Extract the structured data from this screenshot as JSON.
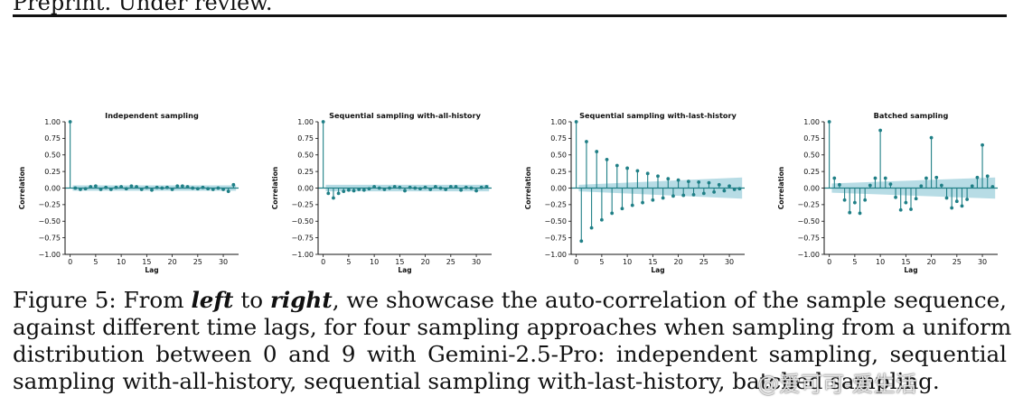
{
  "header": {
    "text": "Preprint. Under review."
  },
  "chart_data": [
    {
      "type": "stem",
      "title": "Independent sampling",
      "xlabel": "Lag",
      "ylabel": "Correlation",
      "xlim": [
        -1,
        33
      ],
      "ylim": [
        -1.0,
        1.0
      ],
      "xticks": [
        0,
        5,
        10,
        15,
        20,
        25,
        30
      ],
      "yticks": [
        -1.0,
        -0.75,
        -0.5,
        -0.25,
        0.0,
        0.25,
        0.5,
        0.75,
        1.0
      ],
      "confidence_band": [
        0.04,
        0.04
      ],
      "lags": [
        0,
        1,
        2,
        3,
        4,
        5,
        6,
        7,
        8,
        9,
        10,
        11,
        12,
        13,
        14,
        15,
        16,
        17,
        18,
        19,
        20,
        21,
        22,
        23,
        24,
        25,
        26,
        27,
        28,
        29,
        30,
        31,
        32
      ],
      "values": [
        1.0,
        0.0,
        -0.02,
        -0.01,
        0.02,
        0.03,
        -0.02,
        0.01,
        -0.02,
        0.01,
        0.02,
        -0.01,
        0.03,
        0.02,
        -0.02,
        0.01,
        -0.03,
        0.01,
        0.0,
        0.01,
        -0.02,
        0.03,
        0.03,
        0.02,
        0.0,
        -0.01,
        0.01,
        -0.01,
        -0.02,
        0.0,
        -0.02,
        -0.05,
        0.05
      ]
    },
    {
      "type": "stem",
      "title": "Sequential sampling with-all-history",
      "xlabel": "Lag",
      "ylabel": "Correlation",
      "xlim": [
        -1,
        33
      ],
      "ylim": [
        -1.0,
        1.0
      ],
      "xticks": [
        0,
        5,
        10,
        15,
        20,
        25,
        30
      ],
      "yticks": [
        -1.0,
        -0.75,
        -0.5,
        -0.25,
        0.0,
        0.25,
        0.5,
        0.75,
        1.0
      ],
      "confidence_band": [
        0.05,
        0.05
      ],
      "lags": [
        0,
        1,
        2,
        3,
        4,
        5,
        6,
        7,
        8,
        9,
        10,
        11,
        12,
        13,
        14,
        15,
        16,
        17,
        18,
        19,
        20,
        21,
        22,
        23,
        24,
        25,
        26,
        27,
        28,
        29,
        30,
        31,
        32
      ],
      "values": [
        1.0,
        -0.08,
        -0.15,
        -0.08,
        -0.05,
        -0.03,
        -0.04,
        -0.02,
        -0.03,
        -0.01,
        0.02,
        0.0,
        -0.02,
        0.0,
        0.02,
        0.01,
        -0.04,
        0.01,
        0.0,
        -0.01,
        0.01,
        -0.02,
        0.02,
        0.0,
        -0.02,
        0.02,
        0.02,
        -0.03,
        0.01,
        0.0,
        -0.04,
        0.01,
        0.02
      ]
    },
    {
      "type": "stem",
      "title": "Sequential sampling with-last-history",
      "xlabel": "Lag",
      "ylabel": "Correlation",
      "xlim": [
        -1,
        33
      ],
      "ylim": [
        -1.0,
        1.0
      ],
      "xticks": [
        0,
        5,
        10,
        15,
        20,
        25,
        30
      ],
      "yticks": [
        -1.0,
        -0.75,
        -0.5,
        -0.25,
        0.0,
        0.25,
        0.5,
        0.75,
        1.0
      ],
      "confidence_band": [
        0.05,
        0.16
      ],
      "lags": [
        0,
        1,
        2,
        3,
        4,
        5,
        6,
        7,
        8,
        9,
        10,
        11,
        12,
        13,
        14,
        15,
        16,
        17,
        18,
        19,
        20,
        21,
        22,
        23,
        24,
        25,
        26,
        27,
        28,
        29,
        30,
        31,
        32
      ],
      "values": [
        1.0,
        -0.8,
        0.7,
        -0.6,
        0.55,
        -0.48,
        0.43,
        -0.38,
        0.34,
        -0.31,
        0.3,
        -0.26,
        0.26,
        -0.22,
        0.22,
        -0.18,
        0.18,
        -0.15,
        0.14,
        -0.12,
        0.12,
        -0.11,
        0.1,
        -0.1,
        0.09,
        -0.08,
        0.08,
        -0.06,
        0.05,
        -0.04,
        0.03,
        -0.02,
        -0.01
      ]
    },
    {
      "type": "stem",
      "title": "Batched sampling",
      "xlabel": "Lag",
      "ylabel": "Correlation",
      "xlim": [
        -1,
        33
      ],
      "ylim": [
        -1.0,
        1.0
      ],
      "xticks": [
        0,
        5,
        10,
        15,
        20,
        25,
        30
      ],
      "yticks": [
        -1.0,
        -0.75,
        -0.5,
        -0.25,
        0.0,
        0.25,
        0.5,
        0.75,
        1.0
      ],
      "confidence_band": [
        0.07,
        0.16
      ],
      "lags": [
        0,
        1,
        2,
        3,
        4,
        5,
        6,
        7,
        8,
        9,
        10,
        11,
        12,
        13,
        14,
        15,
        16,
        17,
        18,
        19,
        20,
        21,
        22,
        23,
        24,
        25,
        26,
        27,
        28,
        29,
        30,
        31,
        32
      ],
      "values": [
        1.0,
        0.15,
        0.05,
        -0.18,
        -0.37,
        -0.22,
        -0.38,
        -0.18,
        0.04,
        0.15,
        0.87,
        0.15,
        0.06,
        -0.14,
        -0.33,
        -0.22,
        -0.32,
        -0.16,
        0.03,
        0.15,
        0.76,
        0.16,
        0.04,
        -0.15,
        -0.3,
        -0.2,
        -0.27,
        -0.17,
        0.03,
        0.16,
        0.65,
        0.18,
        0.02
      ]
    }
  ],
  "caption": {
    "lines": [
      [
        {
          "text": "Figure 5:  From ",
          "style": "normal"
        },
        {
          "text": "left",
          "style": "bi"
        },
        {
          "text": " to ",
          "style": "normal"
        },
        {
          "text": "right",
          "style": "bi"
        },
        {
          "text": ", we showcase the auto-correlation of the sample sequence,",
          "style": "normal"
        }
      ],
      [
        {
          "text": "against different time lags, for four sampling approaches when sampling from a uniform",
          "style": "normal"
        }
      ],
      [
        {
          "text": "distribution between 0 and 9 with Gemini-2.5-Pro:  independent sampling, sequential",
          "style": "normal"
        }
      ],
      [
        {
          "text": "sampling with-all-history, sequential sampling with-last-history, batched sampling.",
          "style": "normal"
        }
      ]
    ]
  },
  "watermark": {
    "text": "@爱可可-爱生活"
  },
  "colors": {
    "stem": "#1f7f86",
    "band": "#9fd0dc",
    "axis": "#111111"
  }
}
